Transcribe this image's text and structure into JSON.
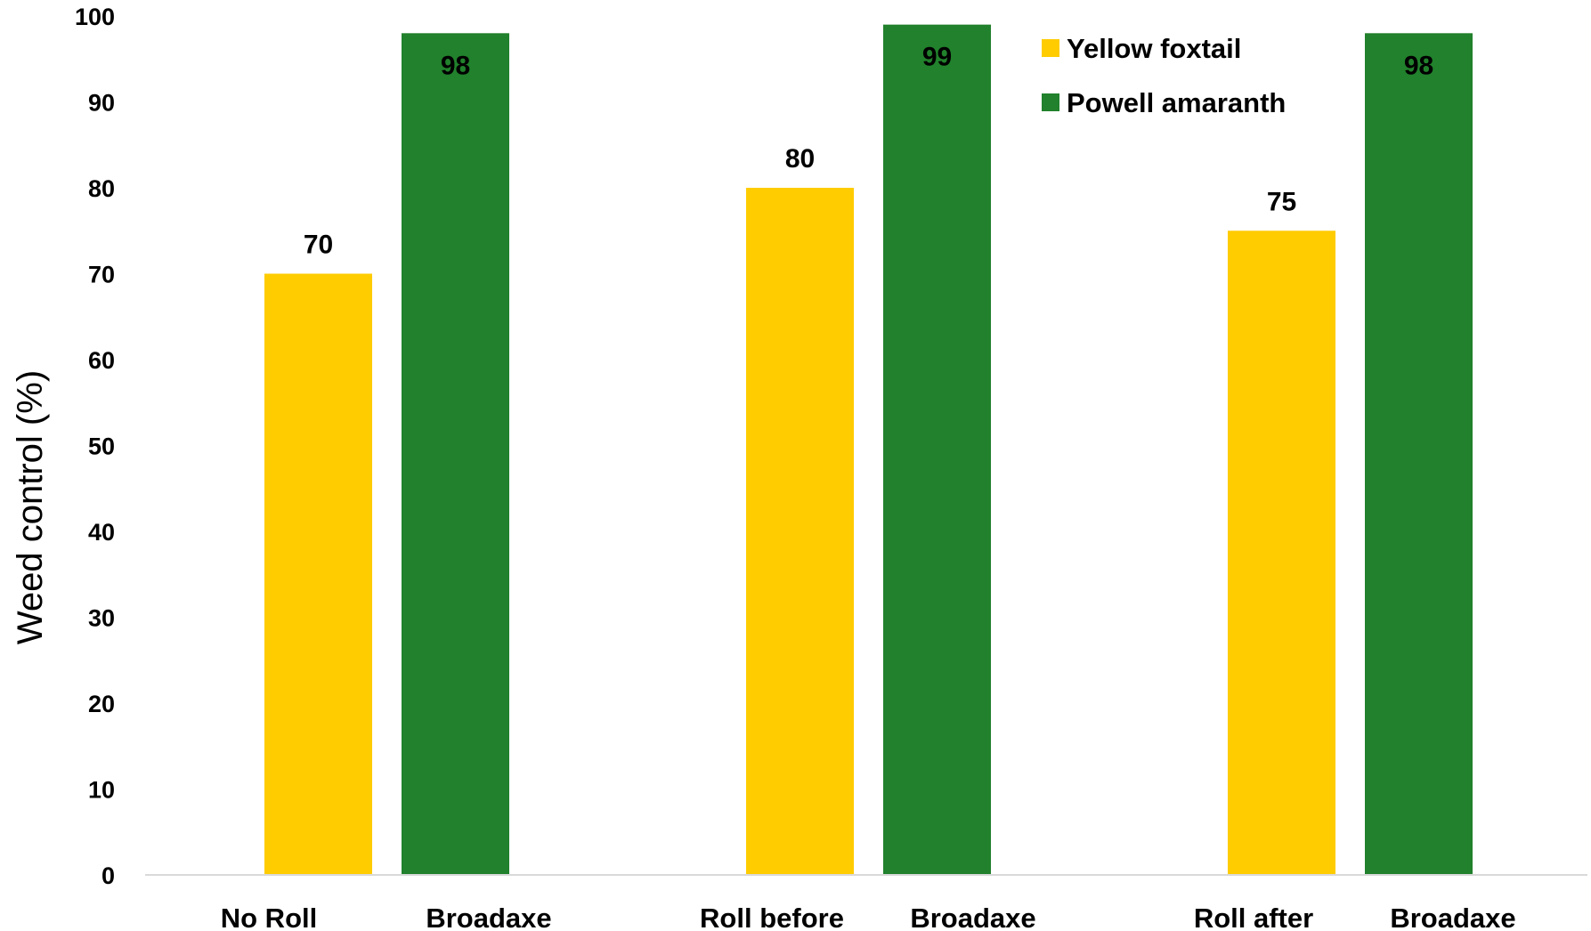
{
  "chart_data": {
    "type": "bar",
    "categories": [
      "No Roll",
      "Roll before",
      "Roll after"
    ],
    "sub_labels": [
      "Broadaxe",
      "Broadaxe",
      "Broadaxe"
    ],
    "series": [
      {
        "name": "Yellow foxtail",
        "color": "#FFCC00",
        "values": [
          70,
          80,
          75
        ]
      },
      {
        "name": "Powell amaranth",
        "color": "#21812C",
        "values": [
          98,
          99,
          98
        ]
      }
    ],
    "ylabel": "Weed control (%)",
    "xlabel": "",
    "ylim": [
      0,
      100
    ],
    "yticks": [
      0,
      10,
      20,
      30,
      40,
      50,
      60,
      70,
      80,
      90,
      100
    ],
    "grid": false,
    "legend_position": "top-right"
  }
}
